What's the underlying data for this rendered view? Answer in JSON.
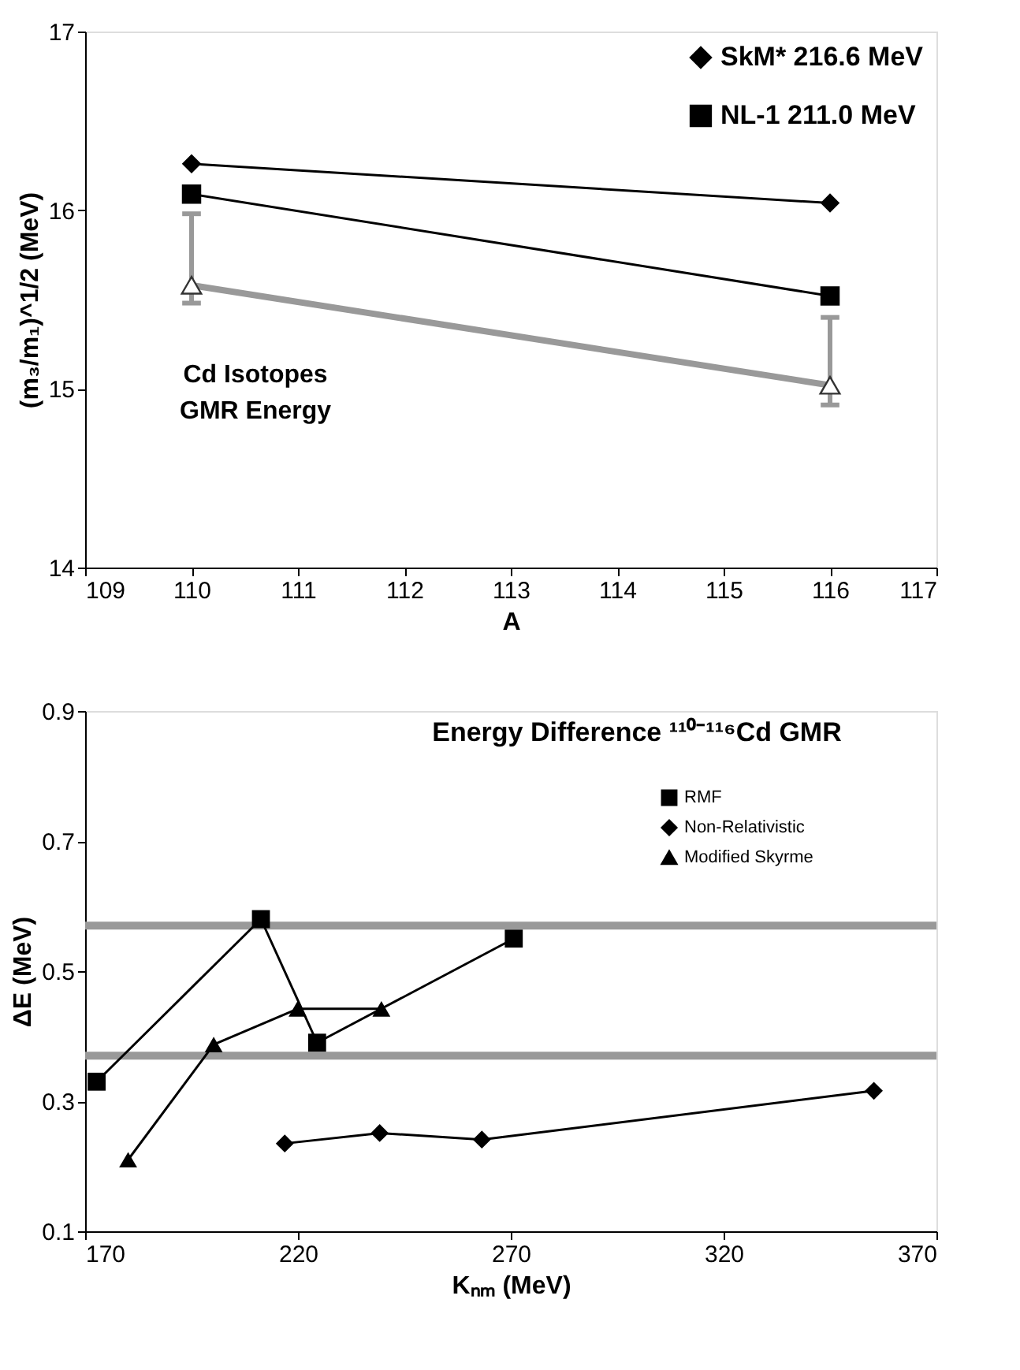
{
  "chart_data": [
    {
      "type": "line",
      "xlabel": "A",
      "ylabel": "(m₃/m₁)^1/2 (MeV)",
      "annotations": [
        "Cd Isotopes",
        "GMR Energy"
      ],
      "xlim": [
        109,
        117
      ],
      "xticks": [
        109,
        110,
        111,
        112,
        113,
        114,
        115,
        116,
        117
      ],
      "ylim": [
        14,
        17
      ],
      "yticks": [
        14,
        15,
        16,
        17
      ],
      "grid": false,
      "legend": "top right",
      "series": [
        {
          "name": "SkM* 216.6 MeV",
          "color": "#000000",
          "marker": "diamond",
          "x": [
            110,
            116
          ],
          "values": [
            16.26,
            16.04
          ]
        },
        {
          "name": "NL-1 211.0 MeV",
          "color": "#000000",
          "marker": "square",
          "x": [
            110,
            116
          ],
          "values": [
            16.09,
            15.52
          ]
        },
        {
          "color": "#999999",
          "marker": "triangle",
          "x": [
            110,
            116
          ],
          "values": [
            15.58,
            15.02
          ],
          "errors": [
            [
              15.48,
              15.98
            ],
            [
              14.91,
              15.4
            ]
          ]
        }
      ]
    },
    {
      "type": "line",
      "title": "Energy Difference ¹¹⁰⁻¹¹⁶Cd GMR",
      "xlabel": "Kₙₘ (MeV)",
      "ylabel": "ΔE (MeV)",
      "xlim": [
        170,
        370
      ],
      "xticks": [
        170,
        220,
        270,
        320,
        370
      ],
      "ylim": [
        0.1,
        0.9
      ],
      "yticks": [
        0.1,
        0.3,
        0.5,
        0.7,
        0.9
      ],
      "grid": false,
      "legend": "top right",
      "ref_lines": [
        {
          "axis": "y",
          "value": 0.57,
          "color": "#999999"
        },
        {
          "axis": "y",
          "value": 0.37,
          "color": "#999999"
        }
      ],
      "series": [
        {
          "name": "RMF",
          "color": "#000000",
          "marker": "square",
          "x": [
            172.7,
            211.3,
            224.5,
            270.7
          ],
          "values": [
            0.33,
            0.58,
            0.39,
            0.55
          ]
        },
        {
          "name": "Non-Relativistic",
          "color": "#000000",
          "marker": "diamond",
          "x": [
            216.9,
            239.2,
            263.2,
            355.3
          ],
          "values": [
            0.235,
            0.251,
            0.241,
            0.316
          ]
        },
        {
          "name": "Modified Skyrme",
          "color": "#000000",
          "marker": "triangle",
          "x": [
            180.1,
            200.2,
            219.9,
            239.6
          ],
          "values": [
            0.21,
            0.387,
            0.442,
            0.442
          ]
        }
      ]
    }
  ]
}
